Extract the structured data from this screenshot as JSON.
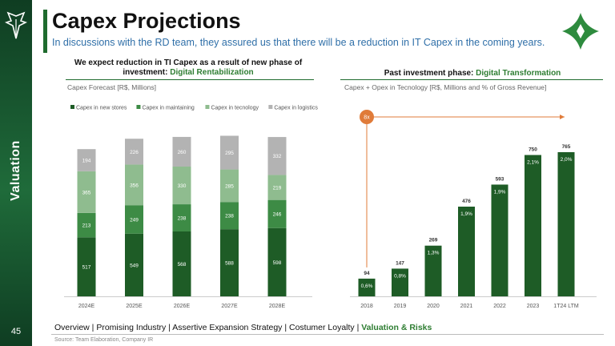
{
  "sidebar": {
    "section": "Valuation",
    "page_number": "45",
    "logo_icon": "wings-logo-icon"
  },
  "header": {
    "title": "Capex Projections",
    "subtitle": "In discussions with the RD team, they assured us that there will be a reduction in IT Capex in the coming years.",
    "logo_icon": "star-leaf-logo-icon"
  },
  "left_panel": {
    "title_line1": "We expect reduction in TI Capex as a result of new phase of",
    "title_line2_prefix": "investment: ",
    "title_line2_highlight": "Digital Rentabilization",
    "subtitle": "Capex Forecast [R$, Millions]"
  },
  "right_panel": {
    "title_prefix": "Past investment phase: ",
    "title_highlight": "Digital Transformation",
    "subtitle": "Capex + Opex in Tecnology [R$, Millions and % of Gross Revenue]"
  },
  "chart_data": [
    {
      "type": "bar",
      "stacked": true,
      "categories": [
        "2024E",
        "2025E",
        "2026E",
        "2027E",
        "2028E"
      ],
      "series": [
        {
          "name": "Capex in new stores",
          "color": "#1e5c26",
          "values": [
            517,
            549,
            568,
            588,
            598
          ]
        },
        {
          "name": "Capex in maintaining",
          "color": "#3d8b45",
          "values": [
            213,
            249,
            238,
            238,
            246
          ]
        },
        {
          "name": "Capex in tecnology",
          "color": "#8fbc8f",
          "values": [
            365,
            356,
            330,
            285,
            219
          ]
        },
        {
          "name": "Capex in logistics",
          "color": "#b3b3b3",
          "values": [
            194,
            226,
            260,
            295,
            332
          ]
        }
      ],
      "legend": "top"
    },
    {
      "type": "bar",
      "categories": [
        "2018",
        "2019",
        "2020",
        "2021",
        "2022",
        "2023",
        "1T24 LTM"
      ],
      "values": [
        94,
        147,
        269,
        476,
        593,
        750,
        765
      ],
      "percent_labels": [
        "0,6%",
        "0,8%",
        "1,3%",
        "1,9%",
        "1,9%",
        "2,1%",
        "2,0%"
      ],
      "color": "#1e5c26",
      "annotation": {
        "text": "8x",
        "color": "#e07b39",
        "from": "2018",
        "to": "1T24 LTM"
      }
    }
  ],
  "footer": {
    "nav": [
      "Overview",
      "Promising Industry",
      "Assertive Expansion Strategy",
      "Costumer Loyalty"
    ],
    "nav_active": "Valuation & Risks",
    "separator": " | ",
    "source": "Source: Team Elaboration, Company IR"
  }
}
